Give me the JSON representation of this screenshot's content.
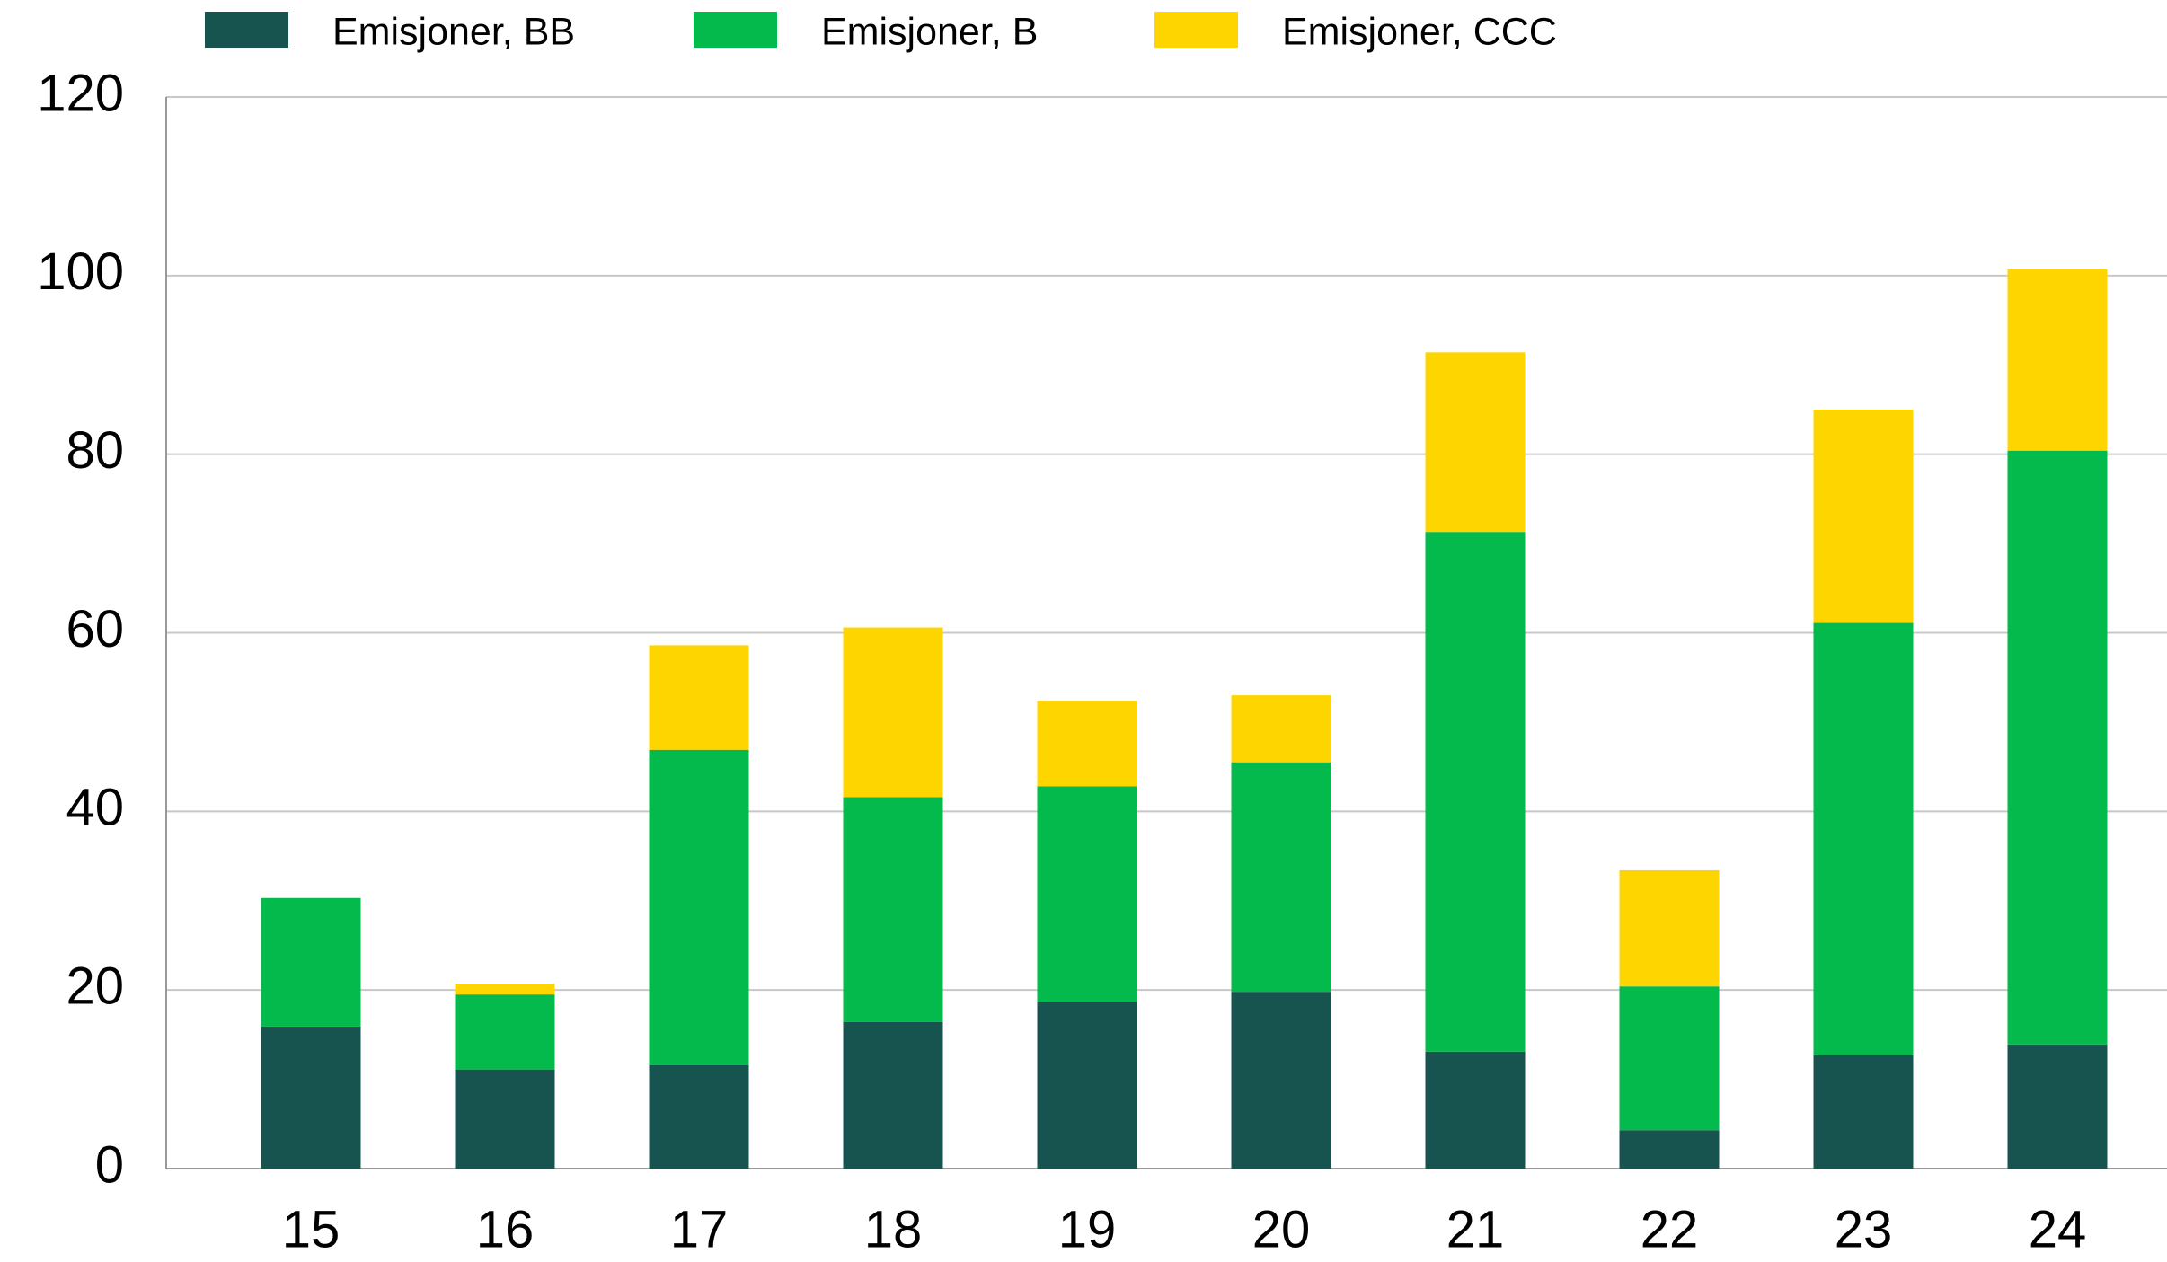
{
  "chart_data": {
    "type": "stacked_bar",
    "categories": [
      "15",
      "16",
      "17",
      "18",
      "19",
      "20",
      "21",
      "22",
      "23",
      "24"
    ],
    "series": [
      {
        "name": "Emisjoner, BB",
        "color": "#17544f",
        "values": [
          15.9,
          11.1,
          11.6,
          16.4,
          18.7,
          19.8,
          13.1,
          4.3,
          12.7,
          13.9
        ]
      },
      {
        "name": "Emisjoner, B",
        "color": "#05ba4c",
        "values": [
          14.4,
          8.4,
          35.3,
          25.2,
          24.1,
          25.7,
          58.2,
          16.1,
          48.4,
          66.5
        ]
      },
      {
        "name": "Emisjoner, CCC",
        "color": "#ffd500",
        "values": [
          0,
          1.2,
          11.7,
          19.0,
          9.6,
          7.5,
          20.1,
          13.0,
          23.9,
          20.3
        ]
      }
    ],
    "ylim": [
      0,
      120
    ],
    "yticks": [
      0,
      20,
      40,
      60,
      80,
      100,
      120
    ],
    "grid": true
  }
}
